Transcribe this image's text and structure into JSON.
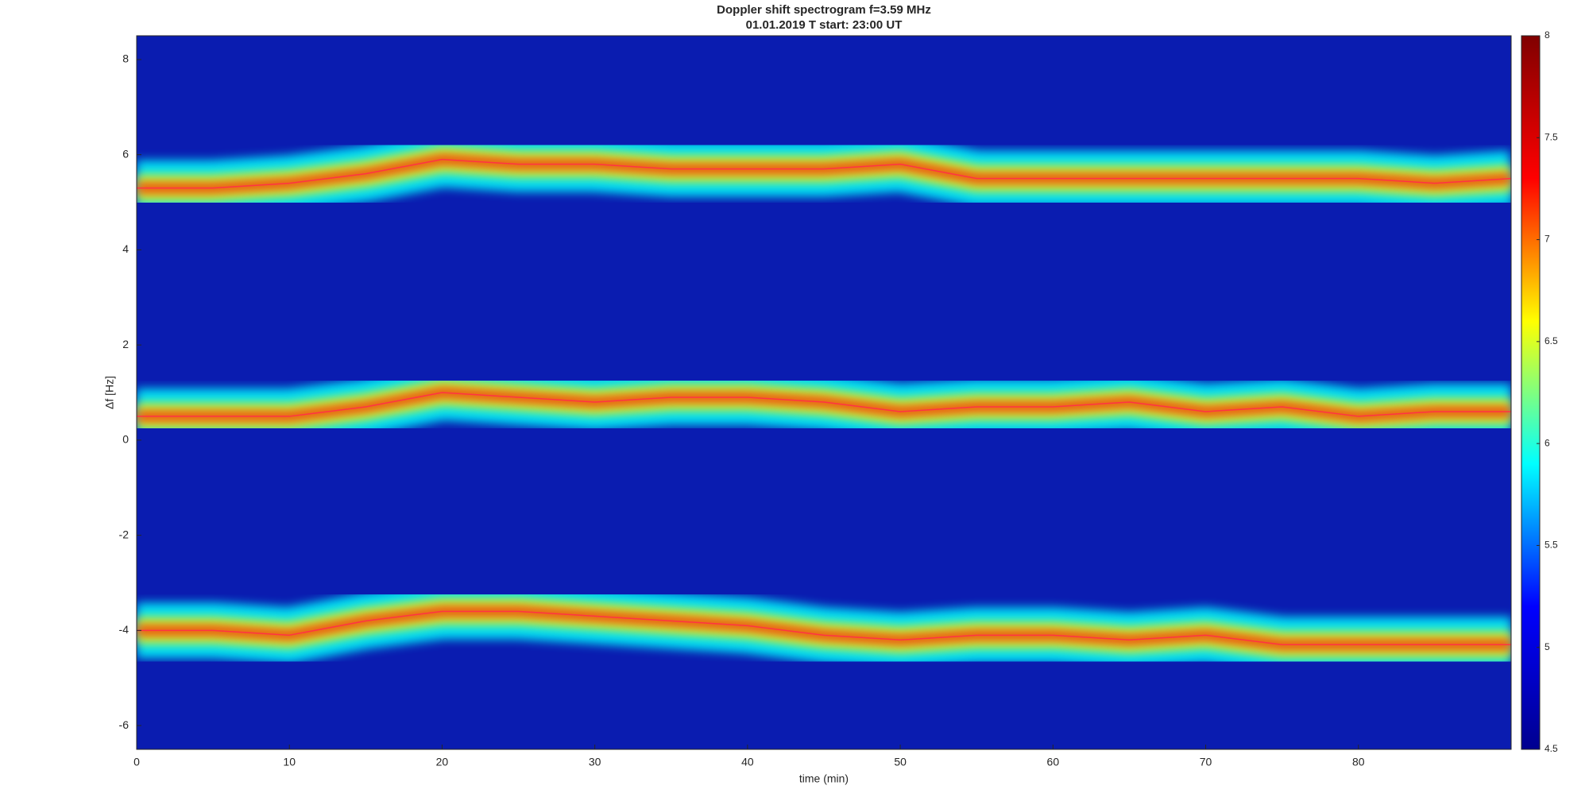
{
  "chart_data": {
    "type": "spectrogram",
    "title": "Doppler shift spectrogram f=3.59 MHz",
    "subtitle": "01.01.2019   T start: 23:00 UT",
    "xlabel": "time (min)",
    "ylabel": "Δf [Hz]",
    "xlim": [
      0,
      90
    ],
    "xticks": [
      0,
      10,
      20,
      30,
      40,
      50,
      60,
      70,
      80
    ],
    "ylim": [
      -6.5,
      8.5
    ],
    "yticks": [
      -6,
      -4,
      -2,
      0,
      2,
      4,
      6,
      8
    ],
    "clim": [
      4.5,
      8
    ],
    "cticks": [
      4.5,
      5,
      5.5,
      6,
      6.5,
      7,
      7.5,
      8
    ],
    "colormap": [
      "#00008f",
      "#0000ff",
      "#00ffff",
      "#ffff00",
      "#ff0000",
      "#800000"
    ],
    "background_color": "#0a1cb0",
    "x": [
      0,
      5,
      10,
      15,
      20,
      25,
      30,
      35,
      40,
      45,
      50,
      55,
      60,
      65,
      70,
      75,
      80,
      85,
      90
    ],
    "series": [
      {
        "color": "#ff3344",
        "values": [
          5.3,
          5.3,
          5.4,
          5.6,
          5.9,
          5.8,
          5.8,
          5.7,
          5.7,
          5.7,
          5.8,
          5.5,
          5.5,
          5.5,
          5.5,
          5.5,
          5.5,
          5.4,
          5.5
        ]
      },
      {
        "color": "#ff3344",
        "values": [
          0.5,
          0.5,
          0.5,
          0.7,
          1.0,
          0.9,
          0.8,
          0.9,
          0.9,
          0.8,
          0.6,
          0.7,
          0.7,
          0.8,
          0.6,
          0.7,
          0.5,
          0.6,
          0.6
        ]
      },
      {
        "color": "#ff3344",
        "values": [
          -4.0,
          -4.0,
          -4.1,
          -3.8,
          -3.6,
          -3.6,
          -3.7,
          -3.8,
          -3.9,
          -4.1,
          -4.2,
          -4.1,
          -4.1,
          -4.2,
          -4.1,
          -4.3,
          -4.3,
          -4.3,
          -4.3
        ]
      }
    ]
  }
}
